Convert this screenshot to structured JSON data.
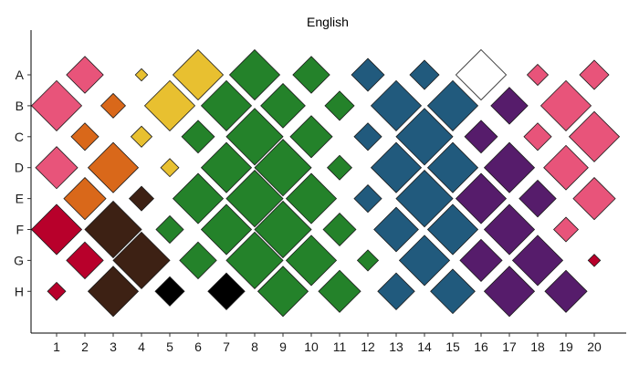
{
  "chart_data": {
    "type": "heatmap",
    "title": "English",
    "xlabel": "",
    "ylabel": "",
    "x": [
      "1",
      "2",
      "3",
      "4",
      "5",
      "6",
      "7",
      "8",
      "9",
      "10",
      "11",
      "12",
      "13",
      "14",
      "15",
      "16",
      "17",
      "18",
      "19",
      "20"
    ],
    "y": [
      "A",
      "B",
      "C",
      "D",
      "E",
      "F",
      "G",
      "H"
    ],
    "size_max": 1,
    "grid": false,
    "legend": "none",
    "tiles": [
      {
        "x": "1",
        "y": "B",
        "size": 0.86,
        "color": "#e8547a"
      },
      {
        "x": "1",
        "y": "D",
        "size": 0.72,
        "color": "#e8547a"
      },
      {
        "x": "1",
        "y": "F",
        "size": 0.86,
        "color": "#b8002b"
      },
      {
        "x": "1",
        "y": "H",
        "size": 0.31,
        "color": "#b8002b"
      },
      {
        "x": "2",
        "y": "A",
        "size": 0.63,
        "color": "#e8547a"
      },
      {
        "x": "2",
        "y": "C",
        "size": 0.47,
        "color": "#d9681a"
      },
      {
        "x": "2",
        "y": "E",
        "size": 0.72,
        "color": "#d9681a"
      },
      {
        "x": "2",
        "y": "G",
        "size": 0.63,
        "color": "#b8002b"
      },
      {
        "x": "3",
        "y": "B",
        "size": 0.42,
        "color": "#d9681a"
      },
      {
        "x": "3",
        "y": "D",
        "size": 0.86,
        "color": "#d9681a"
      },
      {
        "x": "3",
        "y": "F",
        "size": 0.97,
        "color": "#3d2114"
      },
      {
        "x": "3",
        "y": "H",
        "size": 0.86,
        "color": "#3d2114"
      },
      {
        "x": "4",
        "y": "A",
        "size": 0.21,
        "color": "#e8c030"
      },
      {
        "x": "4",
        "y": "C",
        "size": 0.36,
        "color": "#e8c030"
      },
      {
        "x": "4",
        "y": "E",
        "size": 0.42,
        "color": "#3d2114"
      },
      {
        "x": "4",
        "y": "G",
        "size": 0.97,
        "color": "#3d2114"
      },
      {
        "x": "5",
        "y": "B",
        "size": 0.86,
        "color": "#e8c030"
      },
      {
        "x": "5",
        "y": "D",
        "size": 0.31,
        "color": "#e8c030"
      },
      {
        "x": "5",
        "y": "F",
        "size": 0.47,
        "color": "#24822a"
      },
      {
        "x": "5",
        "y": "H",
        "size": 0.5,
        "color": "#000000"
      },
      {
        "x": "6",
        "y": "A",
        "size": 0.86,
        "color": "#e8c030"
      },
      {
        "x": "6",
        "y": "C",
        "size": 0.56,
        "color": "#24822a"
      },
      {
        "x": "6",
        "y": "E",
        "size": 0.86,
        "color": "#24822a"
      },
      {
        "x": "6",
        "y": "G",
        "size": 0.63,
        "color": "#24822a"
      },
      {
        "x": "7",
        "y": "B",
        "size": 0.86,
        "color": "#24822a"
      },
      {
        "x": "7",
        "y": "D",
        "size": 0.86,
        "color": "#24822a"
      },
      {
        "x": "7",
        "y": "F",
        "size": 0.86,
        "color": "#24822a"
      },
      {
        "x": "7",
        "y": "H",
        "size": 0.63,
        "color": "#000000"
      },
      {
        "x": "8",
        "y": "A",
        "size": 0.86,
        "color": "#24822a"
      },
      {
        "x": "8",
        "y": "C",
        "size": 0.97,
        "color": "#24822a"
      },
      {
        "x": "8",
        "y": "E",
        "size": 0.97,
        "color": "#24822a"
      },
      {
        "x": "8",
        "y": "G",
        "size": 0.97,
        "color": "#24822a"
      },
      {
        "x": "9",
        "y": "B",
        "size": 0.76,
        "color": "#24822a"
      },
      {
        "x": "9",
        "y": "D",
        "size": 0.97,
        "color": "#24822a"
      },
      {
        "x": "9",
        "y": "F",
        "size": 0.97,
        "color": "#24822a"
      },
      {
        "x": "9",
        "y": "H",
        "size": 0.86,
        "color": "#24822a"
      },
      {
        "x": "10",
        "y": "A",
        "size": 0.63,
        "color": "#24822a"
      },
      {
        "x": "10",
        "y": "C",
        "size": 0.72,
        "color": "#24822a"
      },
      {
        "x": "10",
        "y": "E",
        "size": 0.86,
        "color": "#24822a"
      },
      {
        "x": "10",
        "y": "G",
        "size": 0.86,
        "color": "#24822a"
      },
      {
        "x": "11",
        "y": "B",
        "size": 0.5,
        "color": "#24822a"
      },
      {
        "x": "11",
        "y": "D",
        "size": 0.42,
        "color": "#24822a"
      },
      {
        "x": "11",
        "y": "F",
        "size": 0.56,
        "color": "#24822a"
      },
      {
        "x": "11",
        "y": "H",
        "size": 0.72,
        "color": "#24822a"
      },
      {
        "x": "12",
        "y": "A",
        "size": 0.56,
        "color": "#215a7d"
      },
      {
        "x": "12",
        "y": "C",
        "size": 0.47,
        "color": "#215a7d"
      },
      {
        "x": "12",
        "y": "E",
        "size": 0.47,
        "color": "#215a7d"
      },
      {
        "x": "12",
        "y": "G",
        "size": 0.36,
        "color": "#24822a"
      },
      {
        "x": "13",
        "y": "B",
        "size": 0.86,
        "color": "#215a7d"
      },
      {
        "x": "13",
        "y": "D",
        "size": 0.86,
        "color": "#215a7d"
      },
      {
        "x": "13",
        "y": "F",
        "size": 0.76,
        "color": "#215a7d"
      },
      {
        "x": "13",
        "y": "H",
        "size": 0.63,
        "color": "#215a7d"
      },
      {
        "x": "14",
        "y": "A",
        "size": 0.5,
        "color": "#215a7d"
      },
      {
        "x": "14",
        "y": "C",
        "size": 0.97,
        "color": "#215a7d"
      },
      {
        "x": "14",
        "y": "E",
        "size": 0.97,
        "color": "#215a7d"
      },
      {
        "x": "14",
        "y": "G",
        "size": 0.86,
        "color": "#215a7d"
      },
      {
        "x": "15",
        "y": "B",
        "size": 0.86,
        "color": "#215a7d"
      },
      {
        "x": "15",
        "y": "D",
        "size": 0.86,
        "color": "#215a7d"
      },
      {
        "x": "15",
        "y": "F",
        "size": 0.86,
        "color": "#215a7d"
      },
      {
        "x": "15",
        "y": "H",
        "size": 0.76,
        "color": "#215a7d"
      },
      {
        "x": "16",
        "y": "A",
        "size": 0.86,
        "color": "#ffffff"
      },
      {
        "x": "16",
        "y": "C",
        "size": 0.56,
        "color": "#561c6b"
      },
      {
        "x": "16",
        "y": "E",
        "size": 0.86,
        "color": "#561c6b"
      },
      {
        "x": "16",
        "y": "G",
        "size": 0.72,
        "color": "#561c6b"
      },
      {
        "x": "17",
        "y": "B",
        "size": 0.63,
        "color": "#561c6b"
      },
      {
        "x": "17",
        "y": "D",
        "size": 0.86,
        "color": "#561c6b"
      },
      {
        "x": "17",
        "y": "F",
        "size": 0.86,
        "color": "#561c6b"
      },
      {
        "x": "17",
        "y": "H",
        "size": 0.86,
        "color": "#561c6b"
      },
      {
        "x": "18",
        "y": "A",
        "size": 0.36,
        "color": "#e8547a"
      },
      {
        "x": "18",
        "y": "C",
        "size": 0.47,
        "color": "#e8547a"
      },
      {
        "x": "18",
        "y": "E",
        "size": 0.63,
        "color": "#561c6b"
      },
      {
        "x": "18",
        "y": "G",
        "size": 0.86,
        "color": "#561c6b"
      },
      {
        "x": "19",
        "y": "B",
        "size": 0.86,
        "color": "#e8547a"
      },
      {
        "x": "19",
        "y": "D",
        "size": 0.76,
        "color": "#e8547a"
      },
      {
        "x": "19",
        "y": "F",
        "size": 0.42,
        "color": "#e8547a"
      },
      {
        "x": "19",
        "y": "H",
        "size": 0.72,
        "color": "#561c6b"
      },
      {
        "x": "20",
        "y": "A",
        "size": 0.5,
        "color": "#e8547a"
      },
      {
        "x": "20",
        "y": "C",
        "size": 0.86,
        "color": "#e8547a"
      },
      {
        "x": "20",
        "y": "E",
        "size": 0.72,
        "color": "#e8547a"
      },
      {
        "x": "20",
        "y": "G",
        "size": 0.21,
        "color": "#b8002b"
      }
    ]
  }
}
